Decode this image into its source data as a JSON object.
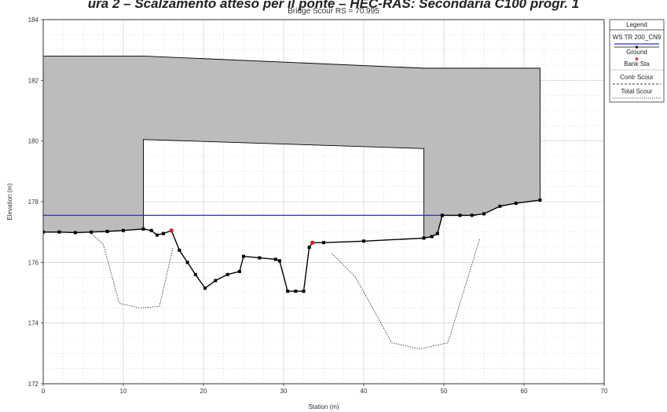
{
  "banner": "ura 2 – Scalzamento atteso per il ponte – HEC-RAS: Secondaria C100 progr. 1",
  "chart_data": {
    "type": "line",
    "title": "Bridge Scour RS = 70.995",
    "xlabel": "Station (m)",
    "ylabel": "Elevation (m)",
    "xlim": [
      0,
      70
    ],
    "ylim": [
      172,
      184
    ],
    "xticks": [
      0,
      10,
      20,
      30,
      40,
      50,
      60,
      70
    ],
    "yticks": [
      172,
      174,
      176,
      178,
      180,
      182,
      184
    ],
    "grid": true,
    "legend_position": "right",
    "legend_title": "Legend",
    "legend": [
      {
        "label": "WS TR 200_CN9",
        "color": "#2233cc",
        "style": "solid"
      },
      {
        "label": "Ground",
        "color": "#000000",
        "style": "marker"
      },
      {
        "label": "Bank Sta",
        "color": "#cc2222",
        "style": "marker"
      },
      {
        "label": "Contr Scour",
        "color": "#000000",
        "style": "dashed"
      },
      {
        "label": "Total Scour",
        "color": "#000000",
        "style": "dotted"
      }
    ],
    "water_surface": {
      "elevation": 177.55,
      "x_range": [
        0,
        54
      ]
    },
    "deck": {
      "top": [
        [
          0,
          182.8
        ],
        [
          12.5,
          182.8
        ],
        [
          47.5,
          182.4
        ],
        [
          62,
          182.4
        ]
      ],
      "low_chord": [
        [
          12.5,
          180.05
        ],
        [
          47.5,
          179.75
        ]
      ],
      "left_pier_station": 12.5,
      "right_pier_station": 47.5,
      "right_end_bottom": 178.05,
      "fill_color": "#bcbcbc"
    },
    "ground": [
      [
        0,
        177.0
      ],
      [
        2,
        177.0
      ],
      [
        4,
        176.98
      ],
      [
        6,
        177.0
      ],
      [
        8,
        177.02
      ],
      [
        10,
        177.05
      ],
      [
        12.5,
        177.1
      ],
      [
        13.5,
        177.05
      ],
      [
        14.2,
        176.9
      ],
      [
        15,
        176.95
      ],
      [
        16,
        177.05
      ],
      [
        17,
        176.4
      ],
      [
        18,
        176.0
      ],
      [
        19,
        175.6
      ],
      [
        20.2,
        175.15
      ],
      [
        21.5,
        175.4
      ],
      [
        23,
        175.6
      ],
      [
        24.5,
        175.7
      ],
      [
        25,
        176.2
      ],
      [
        27,
        176.15
      ],
      [
        29,
        176.1
      ],
      [
        29.5,
        176.05
      ],
      [
        30.5,
        175.05
      ],
      [
        31.5,
        175.05
      ],
      [
        32.5,
        175.05
      ],
      [
        33.2,
        176.5
      ],
      [
        33.6,
        176.65
      ],
      [
        35,
        176.65
      ],
      [
        40,
        176.7
      ],
      [
        47.5,
        176.8
      ],
      [
        48.5,
        176.85
      ],
      [
        49.2,
        176.95
      ],
      [
        49.8,
        177.55
      ],
      [
        52,
        177.55
      ],
      [
        53.5,
        177.55
      ],
      [
        55,
        177.6
      ],
      [
        57,
        177.85
      ],
      [
        59,
        177.95
      ],
      [
        62,
        178.05
      ]
    ],
    "bank_stations": [
      [
        16,
        177.05
      ],
      [
        33.6,
        176.65
      ]
    ],
    "total_scour": [
      [
        6,
        176.95
      ],
      [
        7.5,
        176.6
      ],
      [
        9.5,
        174.65
      ],
      [
        12,
        174.5
      ],
      [
        14.5,
        174.55
      ],
      [
        16.2,
        176.5
      ],
      [
        36,
        176.3
      ],
      [
        39,
        175.5
      ],
      [
        43.5,
        173.35
      ],
      [
        47,
        173.15
      ],
      [
        50.5,
        173.35
      ],
      [
        54.5,
        176.8
      ]
    ]
  }
}
